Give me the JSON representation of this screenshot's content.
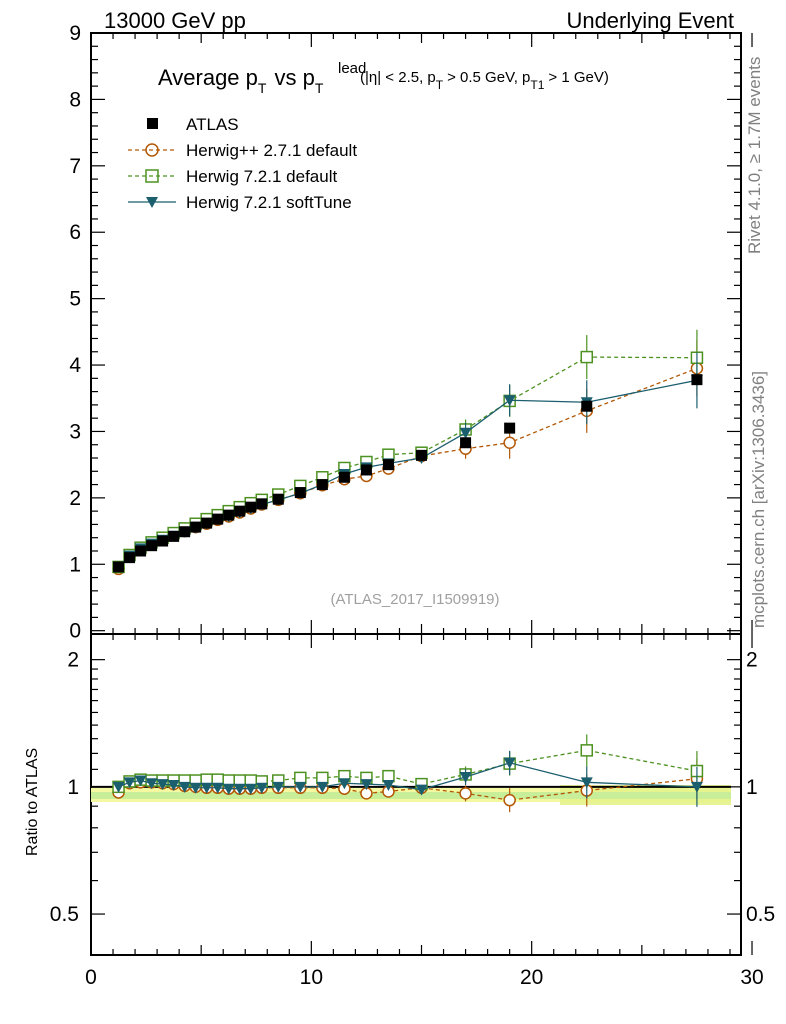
{
  "header": {
    "left": "13000 GeV pp",
    "right": "Underlying Event"
  },
  "side_labels": {
    "rivet": "Rivet 4.1.0, ≥ 1.7M events",
    "mcplots": "mcplots.cern.ch [arXiv:1306.3436]"
  },
  "chart_data": {
    "type": "scatter",
    "title": {
      "main": "Average p",
      "main_sub": "T",
      "vs": "vs p",
      "vs_sup": "lead",
      "vs_sub": "T",
      "cuts_open": "(|η| < 2.5, p",
      "cuts_sub1": "T",
      "cuts_mid": "> 0.5 GeV, p",
      "cuts_sub2": "T1",
      "cuts_close": "> 1 GeV)"
    },
    "analysis_id": "(ATLAS_2017_I1509919)",
    "xlim": [
      0,
      30
    ],
    "xticks": [
      "0",
      "10",
      "20",
      "30"
    ],
    "main_panel": {
      "ylim": [
        0,
        9
      ],
      "yticks": [
        "0",
        "1",
        "2",
        "3",
        "4",
        "5",
        "6",
        "7",
        "8",
        "9"
      ]
    },
    "ratio_panel": {
      "ylabel": "Ratio to ATLAS",
      "ylim": [
        0.4,
        2.3
      ],
      "yscale": "log",
      "yticks": [
        "0.5",
        "1",
        "2"
      ]
    },
    "x": [
      1.25,
      1.75,
      2.25,
      2.75,
      3.25,
      3.75,
      4.25,
      4.75,
      5.25,
      5.75,
      6.25,
      6.75,
      7.25,
      7.75,
      8.5,
      9.5,
      10.5,
      11.5,
      12.5,
      13.5,
      15.0,
      17.0,
      19.0,
      22.5,
      27.5
    ],
    "series": [
      {
        "name": "ATLAS",
        "color": "#000000",
        "marker": "square-filled",
        "values": [
          0.96,
          1.1,
          1.2,
          1.28,
          1.35,
          1.42,
          1.49,
          1.56,
          1.62,
          1.68,
          1.74,
          1.8,
          1.86,
          1.91,
          1.98,
          2.08,
          2.2,
          2.31,
          2.42,
          2.5,
          2.64,
          2.83,
          3.05,
          3.38,
          3.78
        ],
        "ratio": [
          1,
          1,
          1,
          1,
          1,
          1,
          1,
          1,
          1,
          1,
          1,
          1,
          1,
          1,
          1,
          1,
          1,
          1,
          1,
          1,
          1,
          1,
          1,
          1,
          1
        ]
      },
      {
        "name": "Herwig++ 2.7.1 default",
        "color": "#b35806",
        "marker": "circle-open",
        "dashed": true,
        "values": [
          0.93,
          1.12,
          1.23,
          1.31,
          1.38,
          1.44,
          1.5,
          1.56,
          1.61,
          1.67,
          1.72,
          1.78,
          1.84,
          1.9,
          1.97,
          2.07,
          2.19,
          2.28,
          2.33,
          2.44,
          2.63,
          2.74,
          2.83,
          3.31,
          3.95
        ],
        "ratio": [
          0.97,
          1.02,
          1.025,
          1.025,
          1.02,
          1.015,
          1.005,
          1.0,
          0.995,
          0.995,
          0.99,
          0.99,
          0.99,
          0.995,
          0.995,
          0.995,
          0.995,
          0.99,
          0.965,
          0.975,
          0.995,
          0.965,
          0.93,
          0.98,
          1.045
        ]
      },
      {
        "name": "Herwig 7.2.1 default",
        "color": "#4d9221",
        "marker": "square-open",
        "dashed": true,
        "values": [
          0.96,
          1.14,
          1.25,
          1.33,
          1.4,
          1.47,
          1.54,
          1.61,
          1.68,
          1.74,
          1.8,
          1.86,
          1.92,
          1.97,
          2.05,
          2.18,
          2.31,
          2.45,
          2.54,
          2.65,
          2.68,
          3.03,
          3.46,
          4.12,
          4.11
        ],
        "ratio": [
          1.0,
          1.03,
          1.04,
          1.035,
          1.035,
          1.035,
          1.035,
          1.035,
          1.04,
          1.04,
          1.035,
          1.035,
          1.035,
          1.03,
          1.035,
          1.05,
          1.05,
          1.06,
          1.05,
          1.06,
          1.015,
          1.07,
          1.135,
          1.22,
          1.09
        ]
      },
      {
        "name": "Herwig 7.2.1 softTune",
        "color": "#1b5e6e",
        "marker": "triangle-down-filled",
        "dashed": false,
        "values": [
          0.96,
          1.13,
          1.24,
          1.31,
          1.37,
          1.43,
          1.49,
          1.55,
          1.61,
          1.67,
          1.72,
          1.78,
          1.84,
          1.9,
          1.97,
          2.07,
          2.2,
          2.36,
          2.46,
          2.52,
          2.6,
          2.98,
          3.47,
          3.44,
          3.77
        ],
        "ratio": [
          1.0,
          1.025,
          1.035,
          1.02,
          1.015,
          1.01,
          1.0,
          0.995,
          0.995,
          0.995,
          0.99,
          0.99,
          0.99,
          0.995,
          1.0,
          1.0,
          1.0,
          1.02,
          1.015,
          1.01,
          0.985,
          1.055,
          1.14,
          1.025,
          1.0
        ]
      }
    ]
  }
}
